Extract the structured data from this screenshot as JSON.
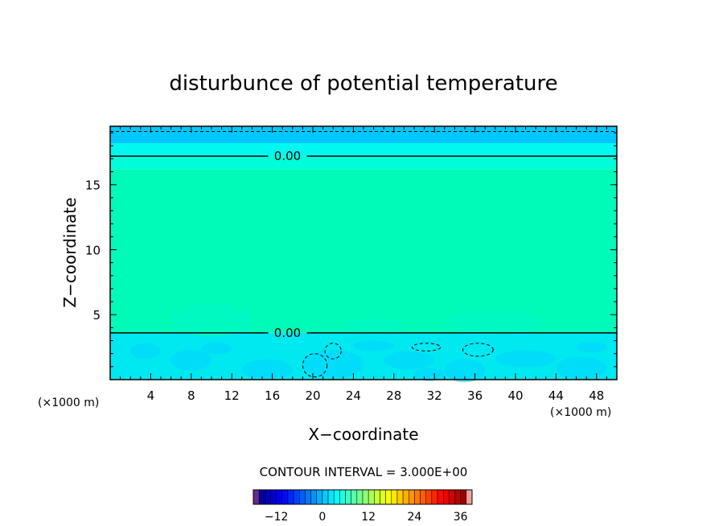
{
  "chart_data": {
    "type": "contour",
    "title": "disturbunce of potential temperature",
    "xlabel": "X−coordinate",
    "ylabel": "Z−coordinate",
    "x_unit_label": "(×1000 m)",
    "z_unit_label": "(×1000 m)",
    "xlim": [
      0,
      50
    ],
    "ylim": [
      0,
      19.5
    ],
    "x_ticks": [
      4,
      8,
      12,
      16,
      20,
      24,
      28,
      32,
      36,
      40,
      44,
      48
    ],
    "y_ticks": [
      5,
      10,
      15
    ],
    "contour_interval_text": "CONTOUR INTERVAL = 3.000E+00",
    "contours": [
      {
        "level_label": "0.00",
        "style": "solid",
        "z": 17.2,
        "label_x": 17.5
      },
      {
        "level_label": "0.00",
        "style": "solid",
        "z": 3.6,
        "label_x": 17.5
      }
    ],
    "dashed_line_z": 19.1,
    "shaded_bands": [
      {
        "z_from": 18.2,
        "z_to": 19.5,
        "color": "#00c8ff"
      },
      {
        "z_from": 17.2,
        "z_to": 18.2,
        "color": "#00f8f0"
      },
      {
        "z_from": 16.2,
        "z_to": 17.2,
        "color": "#00fcd8"
      },
      {
        "z_from": 3.6,
        "z_to": 16.2,
        "color": "#00fab8"
      },
      {
        "z_from": 0,
        "z_to": 3.6,
        "color": "#00e8f0"
      }
    ],
    "colorbar": {
      "min": -18,
      "max": 39,
      "step": 1.5,
      "tick_labels": [
        "−12",
        "0",
        "12",
        "24",
        "36"
      ],
      "tick_values": [
        -12,
        0,
        12,
        24,
        36
      ]
    }
  }
}
